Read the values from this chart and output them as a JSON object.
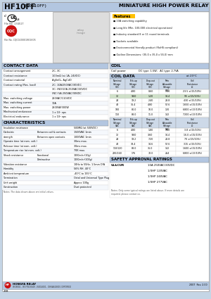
{
  "title_bold": "HF10FF",
  "title_sub": " (JQX-10FF)",
  "title_right": "MINIATURE HIGH POWER RELAY",
  "header_bg": "#b3c6e0",
  "section_header_bg": "#b3c6e0",
  "light_blue_bg": "#cdd9e8",
  "page_bg": "#c5d5e5",
  "features": [
    "10A switching capability",
    "Long life (Min. 100,000 electrical operations)",
    "Industry standard 8 or 11 round terminals",
    "Sockets available",
    "Environmental friendly product (RoHS compliant)",
    "Outline Dimensions: (35.0 x 35.0 x 55.0) mm"
  ],
  "coil_power": "DC type: 1.5W;   AC type: 2.7VA",
  "coil_data_dc": [
    [
      "6",
      "4.80",
      "0.60",
      "7.20",
      "23.5 ±(15/10%)"
    ],
    [
      "12",
      "9.60",
      "1.20",
      "14.4",
      "95 ±(15/10%)"
    ],
    [
      "24",
      "19.2",
      "2.40",
      "28.8",
      "430 ±(15/10%)"
    ],
    [
      "48",
      "36.4",
      "4.80",
      "57.6",
      "1650 ±(15/10%)"
    ],
    [
      "100",
      "80.0",
      "10.0",
      "120",
      "6800 ±(15/10%)"
    ],
    [
      "110",
      "88.0",
      "11.0",
      "132",
      "7200 ±(15/10%)"
    ]
  ],
  "coil_data_ac": [
    [
      "6",
      "4.80",
      "1.80",
      "7.20",
      "3.8 ±(15/10%)"
    ],
    [
      "12",
      "9.60",
      "3.60",
      "14.4",
      "16.0 ±(15/10%)"
    ],
    [
      "24",
      "19.2",
      "7.20",
      "28.8",
      "70 ±(15/10%)"
    ],
    [
      "48",
      "38.4",
      "14.6",
      "57.6",
      "315 ±(15/10%)"
    ],
    [
      "110/120",
      "88.0",
      "36.0",
      "132",
      "1600 ±(15/10%)"
    ],
    [
      "220/240",
      "176",
      "72.0",
      "264",
      "6800 ±(15/10%)"
    ]
  ],
  "safety_ratings": [
    "10A 250VAC/30VDC",
    "1/3HP 120VAC",
    "1/3HP 240VAC",
    "1/3HP 277VAC"
  ],
  "footer_cert": "ISO9001 , ISO/TS16949 , ISO14001 , OHSAS18001 CERTIFIED",
  "footer_year": "2007  Rev. 2.00",
  "page_num": "238"
}
